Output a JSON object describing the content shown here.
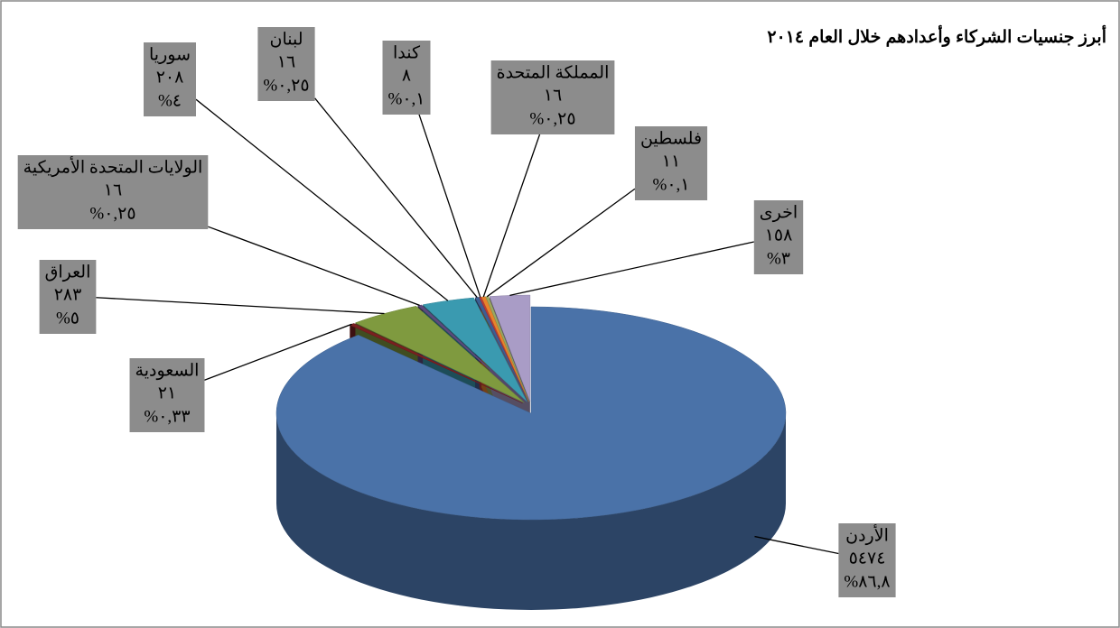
{
  "chart_data": {
    "type": "pie3d",
    "title": "أبرز جنسيات الشركاء وأعدادهم خلال العام ٢٠١٤",
    "categories": [
      "الأردن",
      "السعودية",
      "العراق",
      "الولايات المتحدة الأمريكية",
      "سوريا",
      "لبنان",
      "كندا",
      "المملكة المتحدة",
      "فلسطين",
      "اخرى"
    ],
    "values": [
      5474,
      21,
      283,
      16,
      208,
      16,
      8,
      16,
      11,
      158
    ],
    "value_labels": [
      "٥٤٧٤",
      "٢١",
      "٢٨٣",
      "١٦",
      "٢٠٨",
      "١٦",
      "٨",
      "١٦",
      "١١",
      "١٥٨"
    ],
    "percents": [
      86.8,
      0.33,
      5,
      0.25,
      4,
      0.25,
      0.1,
      0.25,
      0.1,
      3
    ],
    "percent_labels": [
      "%٨٦,٨",
      "%٠,٣٣",
      "%٥",
      "%٠,٢٥",
      "%٤",
      "%٠,٢٥",
      "%٠,١",
      "%٠,٢٥",
      "%٠,١",
      "%٣"
    ],
    "colors": [
      "#4a72a8",
      "#7a2020",
      "#7f9a3f",
      "#5b4a7d",
      "#3a9ab0",
      "#3d5e93",
      "#b83a3a",
      "#e8822b",
      "#9aa860",
      "#a99cc6"
    ]
  }
}
